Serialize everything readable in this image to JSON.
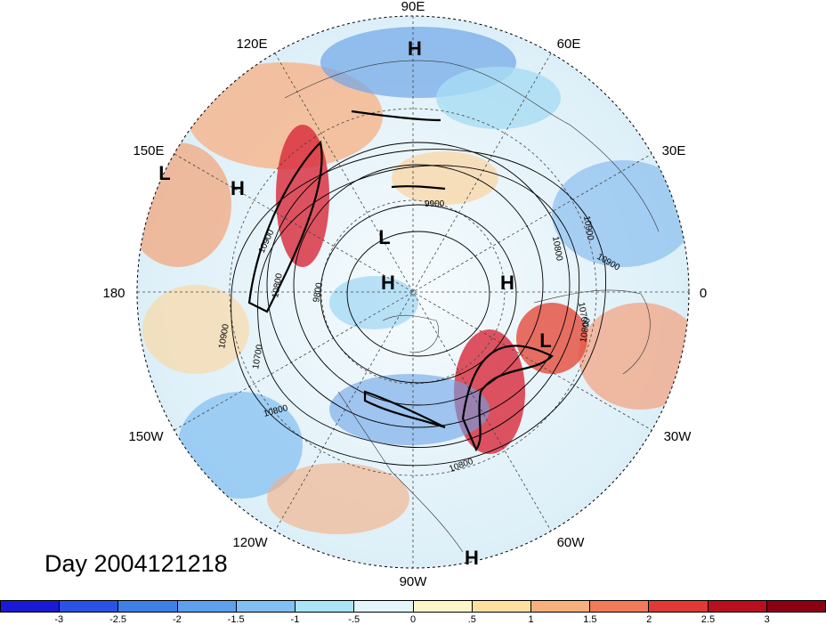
{
  "map": {
    "title": "Day 2004121218",
    "longitude_labels": [
      {
        "text": "90E",
        "lon": 90
      },
      {
        "text": "60E",
        "lon": 60
      },
      {
        "text": "30E",
        "lon": 30
      },
      {
        "text": "0",
        "lon": 0
      },
      {
        "text": "30W",
        "lon": -30
      },
      {
        "text": "60W",
        "lon": -60
      },
      {
        "text": "90W",
        "lon": -90
      },
      {
        "text": "120W",
        "lon": -120
      },
      {
        "text": "150W",
        "lon": -150
      },
      {
        "text": "180",
        "lon": 180
      },
      {
        "text": "150E",
        "lon": 150
      },
      {
        "text": "120E",
        "lon": 120
      }
    ],
    "pressure_markers": [
      {
        "text": "H",
        "near": "Siberia"
      },
      {
        "text": "L",
        "near": "Pacific 150E"
      },
      {
        "text": "H",
        "near": "Pacific"
      },
      {
        "text": "L",
        "near": "Arctic"
      },
      {
        "text": "H",
        "near": "Arctic"
      },
      {
        "text": "H",
        "near": "Europe"
      },
      {
        "text": "L",
        "near": "Atlantic"
      },
      {
        "text": "H",
        "near": "South America"
      }
    ],
    "contour_labels": [
      "9900",
      "10900",
      "10800",
      "10700",
      "10900",
      "9800",
      "10800",
      "10900",
      "10700",
      "10800",
      "10800",
      "10900",
      "10800"
    ],
    "colorbar": {
      "ticks": [
        "-3",
        "-2.5",
        "-2",
        "-1.5",
        "-1",
        "-.5",
        "0",
        ".5",
        "1",
        "1.5",
        "2",
        "2.5",
        "3"
      ],
      "colors": [
        "#1a1ad6",
        "#2a52e6",
        "#3f7fe8",
        "#5fa0ee",
        "#80c0f2",
        "#a8e4f6",
        "#e2f6fb",
        "#fdf6c8",
        "#fde0a0",
        "#f8b07c",
        "#f27a58",
        "#e03a36",
        "#b8101e",
        "#8c0014"
      ]
    }
  }
}
